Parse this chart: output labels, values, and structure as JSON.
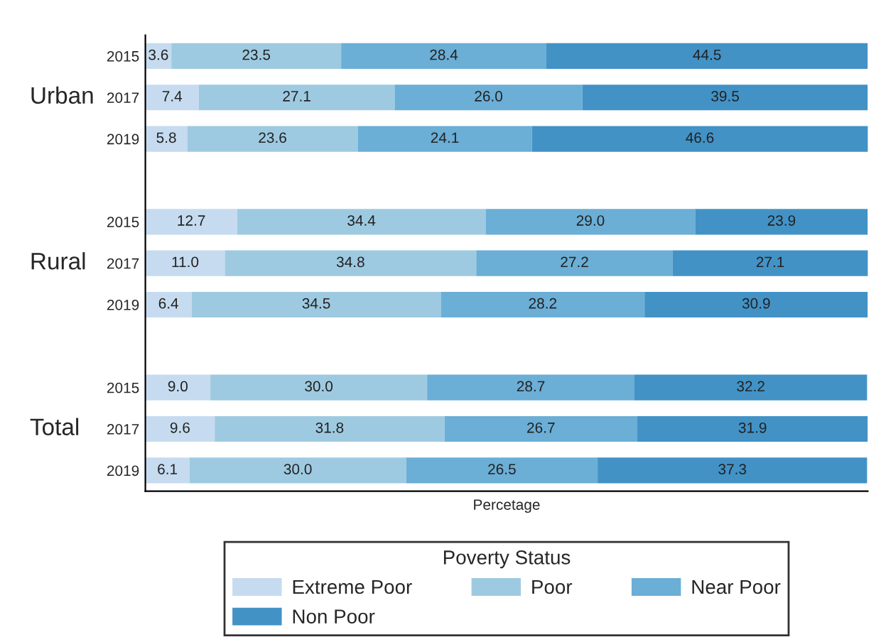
{
  "chart_data": {
    "type": "bar",
    "orientation": "horizontal",
    "stacked": true,
    "xlabel": "Percetage",
    "legend_title": "Poverty Status",
    "legend": "bottom",
    "grid": false,
    "xlim": [
      0,
      100
    ],
    "categories": [
      "2015",
      "2017",
      "2019",
      null,
      "2015",
      "2017",
      "2019",
      null,
      "2015",
      "2017",
      "2019"
    ],
    "annotations": [
      "Urban",
      "Rural",
      "Total"
    ],
    "series": [
      {
        "name": "Extreme Poor",
        "color": "#c6dbef",
        "values": [
          3.6,
          7.4,
          5.8,
          null,
          12.7,
          11.0,
          6.4,
          null,
          9.0,
          9.6,
          6.1
        ],
        "value_labels": [
          "3.6",
          "7.4",
          "5.8",
          null,
          "12.7",
          "11.0",
          "6.4",
          null,
          "9.0",
          "9.6",
          "6.1"
        ]
      },
      {
        "name": "Poor",
        "color": "#9ecae1",
        "values": [
          23.5,
          27.1,
          23.6,
          null,
          34.4,
          34.8,
          34.5,
          null,
          30.0,
          31.8,
          30.0
        ],
        "value_labels": [
          "23.5",
          "27.1",
          "23.6",
          null,
          "34.4",
          "34.8",
          "34.5",
          null,
          "30.0",
          "31.8",
          "30.0"
        ]
      },
      {
        "name": "Near Poor",
        "color": "#6baed6",
        "values": [
          28.4,
          26.0,
          24.1,
          null,
          29.0,
          27.2,
          28.2,
          null,
          28.7,
          26.7,
          26.5
        ],
        "value_labels": [
          "28.4",
          "26.0",
          "24.1",
          null,
          "29.0",
          "27.2",
          "28.2",
          null,
          "28.7",
          "26.7",
          "26.5"
        ]
      },
      {
        "name": "Non Poor",
        "color": "#4292c6",
        "values": [
          44.5,
          39.5,
          46.6,
          null,
          23.9,
          27.1,
          30.9,
          null,
          32.2,
          31.9,
          37.3
        ],
        "value_labels": [
          "44.5",
          "39.5",
          "46.6",
          null,
          "23.9",
          "27.1",
          "30.9",
          null,
          "32.2",
          "31.9",
          "37.3"
        ]
      }
    ]
  }
}
